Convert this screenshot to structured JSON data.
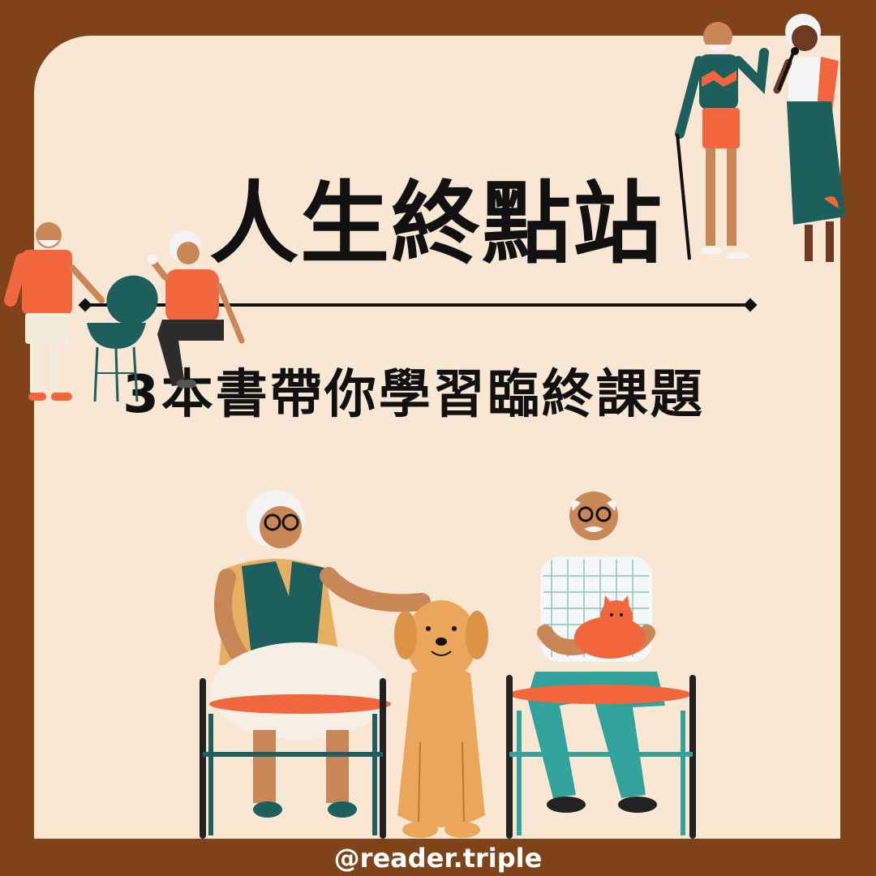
{
  "title": "人生終點站",
  "subtitle": "3本書帶你學習臨終課題",
  "handle": "@reader.triple",
  "colors": {
    "frame": "#7f4319",
    "background": "#f9e6d3",
    "text": "#111111",
    "accent_orange": "#f1663c",
    "accent_teal": "#1d5f5c",
    "accent_green": "#31a39a",
    "skin": "#c98656",
    "dog": "#eaa65a"
  },
  "illustrations": [
    "couple-standing-cane-microphone",
    "man-grilling-bbq",
    "woman-sitting-with-drink",
    "woman-chair-petting-dog",
    "dog-sitting",
    "man-chair-holding-cat"
  ]
}
